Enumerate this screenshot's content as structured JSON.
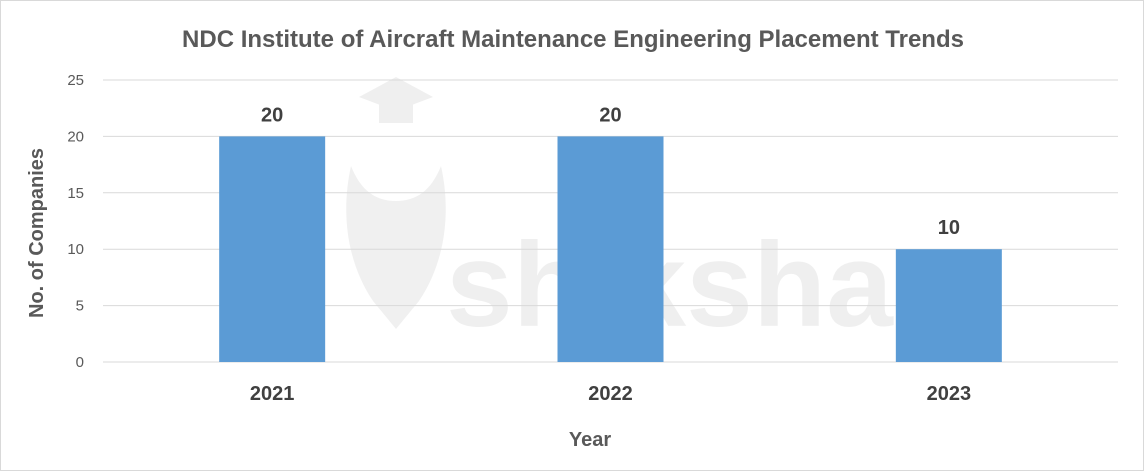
{
  "chart_data": {
    "type": "bar",
    "title": "NDC Institute of Aircraft Maintenance Engineering Placement Trends",
    "xlabel": "Year",
    "ylabel": "No. of Companies",
    "categories": [
      "2021",
      "2022",
      "2023"
    ],
    "values": [
      20,
      20,
      10
    ],
    "data_labels": [
      "20",
      "20",
      "10"
    ],
    "ylim": [
      0,
      25
    ],
    "yticks": [
      "0",
      "5",
      "10",
      "15",
      "20",
      "25"
    ],
    "grid": true,
    "legend": "none",
    "bar_color": "#5b9bd5"
  },
  "watermark": {
    "text": "shiksha",
    "icon": "shiksha-logo-icon"
  }
}
